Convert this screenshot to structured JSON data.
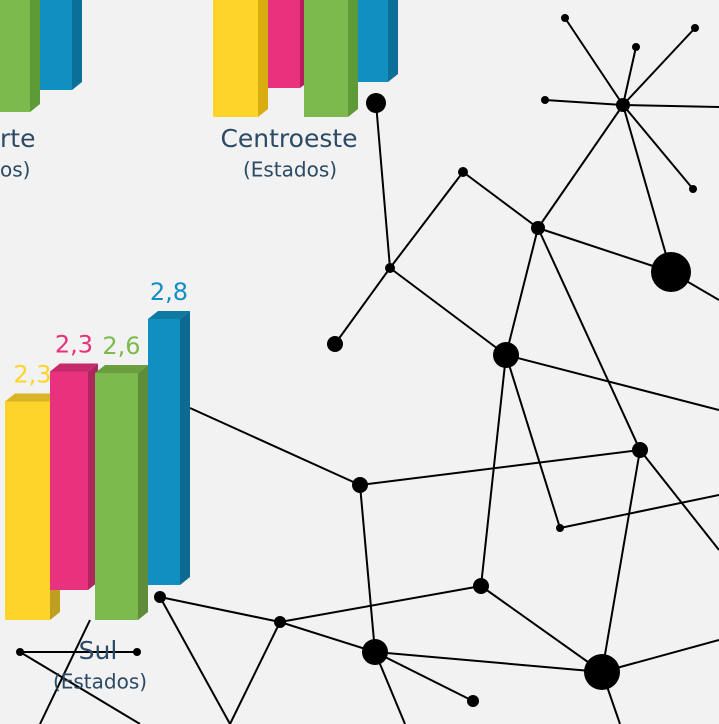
{
  "chart_data": [
    {
      "type": "bar",
      "title": "Sul",
      "subtitle": "(Estados)",
      "values": [
        2.3,
        2.3,
        2.6,
        2.8
      ],
      "value_labels": [
        "2,3",
        "2,3",
        "2,6",
        "2,8"
      ],
      "colors": [
        "#ffd42a",
        "#e8327e",
        "#7dba4d",
        "#118fc1"
      ]
    }
  ],
  "fragments": [
    {
      "title": "rte",
      "subtitle": "os)"
    },
    {
      "title": "Centroeste",
      "subtitle": "(Estados)"
    }
  ]
}
